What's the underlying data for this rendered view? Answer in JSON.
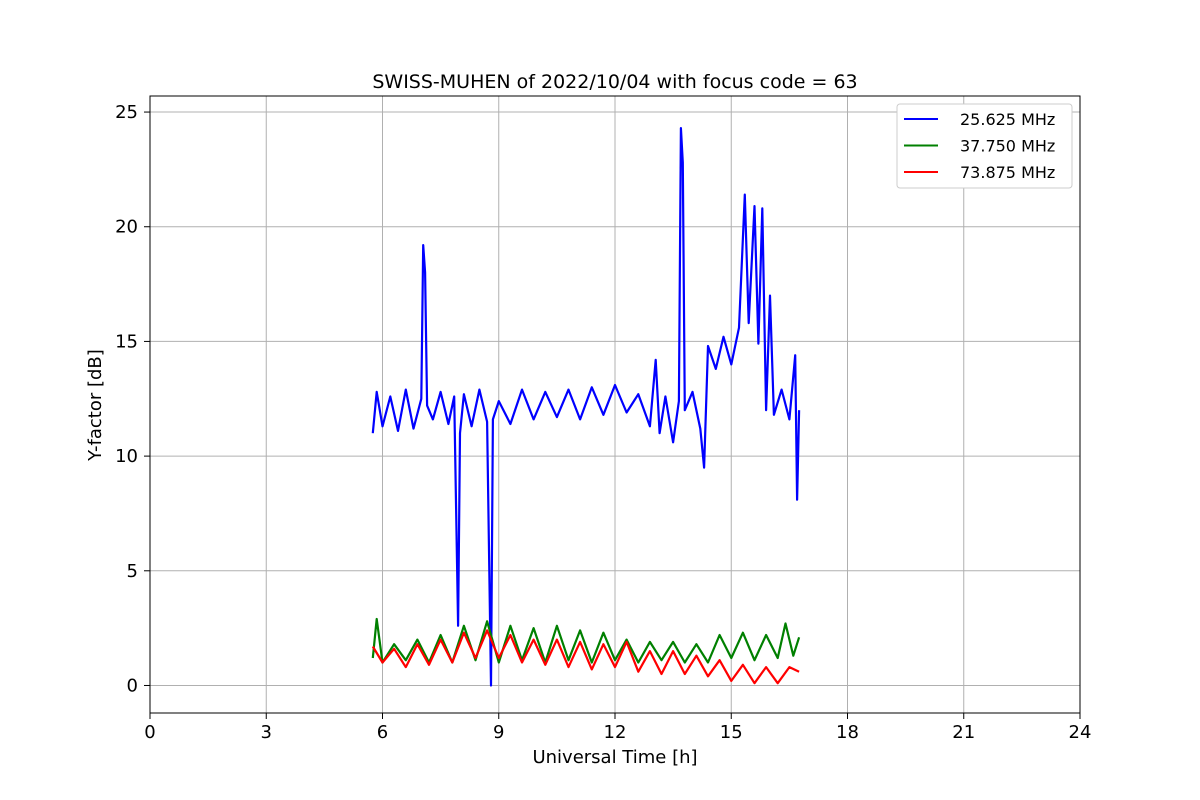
{
  "chart_data": {
    "type": "line",
    "title": "SWISS-MUHEN of 2022/10/04 with focus code = 63",
    "xlabel": "Universal Time [h]",
    "ylabel": "Y-factor [dB]",
    "xlim": [
      0,
      24
    ],
    "ylim": [
      -1.2,
      25.7
    ],
    "xticks": [
      0,
      3,
      6,
      9,
      12,
      15,
      18,
      21,
      24
    ],
    "yticks": [
      0,
      5,
      10,
      15,
      20,
      25
    ],
    "grid": true,
    "legend_position": "top-right",
    "series": [
      {
        "name": "25.625 MHz",
        "color": "#0000ff",
        "points": [
          [
            5.75,
            11.0
          ],
          [
            5.85,
            12.8
          ],
          [
            6.0,
            11.3
          ],
          [
            6.2,
            12.6
          ],
          [
            6.4,
            11.1
          ],
          [
            6.6,
            12.9
          ],
          [
            6.8,
            11.2
          ],
          [
            7.0,
            12.5
          ],
          [
            7.05,
            19.2
          ],
          [
            7.1,
            18.0
          ],
          [
            7.15,
            12.2
          ],
          [
            7.3,
            11.6
          ],
          [
            7.5,
            12.8
          ],
          [
            7.7,
            11.4
          ],
          [
            7.85,
            12.6
          ],
          [
            7.95,
            2.6
          ],
          [
            8.0,
            11.0
          ],
          [
            8.1,
            12.7
          ],
          [
            8.3,
            11.3
          ],
          [
            8.5,
            12.9
          ],
          [
            8.7,
            11.5
          ],
          [
            8.8,
            0.0
          ],
          [
            8.85,
            11.6
          ],
          [
            9.0,
            12.4
          ],
          [
            9.3,
            11.4
          ],
          [
            9.6,
            12.9
          ],
          [
            9.9,
            11.6
          ],
          [
            10.2,
            12.8
          ],
          [
            10.5,
            11.7
          ],
          [
            10.8,
            12.9
          ],
          [
            11.1,
            11.6
          ],
          [
            11.4,
            13.0
          ],
          [
            11.7,
            11.8
          ],
          [
            12.0,
            13.1
          ],
          [
            12.3,
            11.9
          ],
          [
            12.6,
            12.7
          ],
          [
            12.9,
            11.3
          ],
          [
            13.05,
            14.2
          ],
          [
            13.15,
            11.0
          ],
          [
            13.3,
            12.6
          ],
          [
            13.5,
            10.6
          ],
          [
            13.65,
            12.4
          ],
          [
            13.7,
            24.3
          ],
          [
            13.75,
            22.8
          ],
          [
            13.8,
            12.0
          ],
          [
            14.0,
            12.8
          ],
          [
            14.2,
            11.2
          ],
          [
            14.3,
            9.5
          ],
          [
            14.4,
            14.8
          ],
          [
            14.6,
            13.8
          ],
          [
            14.8,
            15.2
          ],
          [
            15.0,
            14.0
          ],
          [
            15.2,
            15.6
          ],
          [
            15.35,
            21.4
          ],
          [
            15.45,
            15.8
          ],
          [
            15.6,
            20.9
          ],
          [
            15.7,
            14.9
          ],
          [
            15.8,
            20.8
          ],
          [
            15.9,
            12.0
          ],
          [
            16.0,
            17.0
          ],
          [
            16.1,
            11.8
          ],
          [
            16.3,
            12.9
          ],
          [
            16.5,
            11.6
          ],
          [
            16.65,
            14.4
          ],
          [
            16.7,
            8.1
          ],
          [
            16.75,
            12.0
          ]
        ]
      },
      {
        "name": "37.750 MHz",
        "color": "#008000",
        "points": [
          [
            5.75,
            1.2
          ],
          [
            5.85,
            2.9
          ],
          [
            6.0,
            1.0
          ],
          [
            6.3,
            1.8
          ],
          [
            6.6,
            1.1
          ],
          [
            6.9,
            2.0
          ],
          [
            7.2,
            1.0
          ],
          [
            7.5,
            2.2
          ],
          [
            7.8,
            1.0
          ],
          [
            8.1,
            2.6
          ],
          [
            8.4,
            1.1
          ],
          [
            8.7,
            2.8
          ],
          [
            9.0,
            1.0
          ],
          [
            9.3,
            2.6
          ],
          [
            9.6,
            1.1
          ],
          [
            9.9,
            2.5
          ],
          [
            10.2,
            1.0
          ],
          [
            10.5,
            2.6
          ],
          [
            10.8,
            1.1
          ],
          [
            11.1,
            2.4
          ],
          [
            11.4,
            1.0
          ],
          [
            11.7,
            2.3
          ],
          [
            12.0,
            1.1
          ],
          [
            12.3,
            2.0
          ],
          [
            12.6,
            1.0
          ],
          [
            12.9,
            1.9
          ],
          [
            13.2,
            1.1
          ],
          [
            13.5,
            1.9
          ],
          [
            13.8,
            1.0
          ],
          [
            14.1,
            1.8
          ],
          [
            14.4,
            1.0
          ],
          [
            14.7,
            2.2
          ],
          [
            15.0,
            1.2
          ],
          [
            15.3,
            2.3
          ],
          [
            15.6,
            1.1
          ],
          [
            15.9,
            2.2
          ],
          [
            16.2,
            1.2
          ],
          [
            16.4,
            2.7
          ],
          [
            16.6,
            1.3
          ],
          [
            16.75,
            2.1
          ]
        ]
      },
      {
        "name": "73.875 MHz",
        "color": "#ff0000",
        "points": [
          [
            5.75,
            1.7
          ],
          [
            6.0,
            1.0
          ],
          [
            6.3,
            1.6
          ],
          [
            6.6,
            0.8
          ],
          [
            6.9,
            1.8
          ],
          [
            7.2,
            0.9
          ],
          [
            7.5,
            2.0
          ],
          [
            7.8,
            1.0
          ],
          [
            8.1,
            2.3
          ],
          [
            8.4,
            1.2
          ],
          [
            8.7,
            2.4
          ],
          [
            9.0,
            1.2
          ],
          [
            9.3,
            2.2
          ],
          [
            9.6,
            1.0
          ],
          [
            9.9,
            2.0
          ],
          [
            10.2,
            0.9
          ],
          [
            10.5,
            2.0
          ],
          [
            10.8,
            0.8
          ],
          [
            11.1,
            1.9
          ],
          [
            11.4,
            0.7
          ],
          [
            11.7,
            1.8
          ],
          [
            12.0,
            0.8
          ],
          [
            12.3,
            1.9
          ],
          [
            12.6,
            0.6
          ],
          [
            12.9,
            1.5
          ],
          [
            13.2,
            0.5
          ],
          [
            13.5,
            1.5
          ],
          [
            13.8,
            0.5
          ],
          [
            14.1,
            1.3
          ],
          [
            14.4,
            0.4
          ],
          [
            14.7,
            1.1
          ],
          [
            15.0,
            0.2
          ],
          [
            15.3,
            0.9
          ],
          [
            15.6,
            0.1
          ],
          [
            15.9,
            0.8
          ],
          [
            16.2,
            0.1
          ],
          [
            16.5,
            0.8
          ],
          [
            16.75,
            0.6
          ]
        ]
      }
    ]
  }
}
